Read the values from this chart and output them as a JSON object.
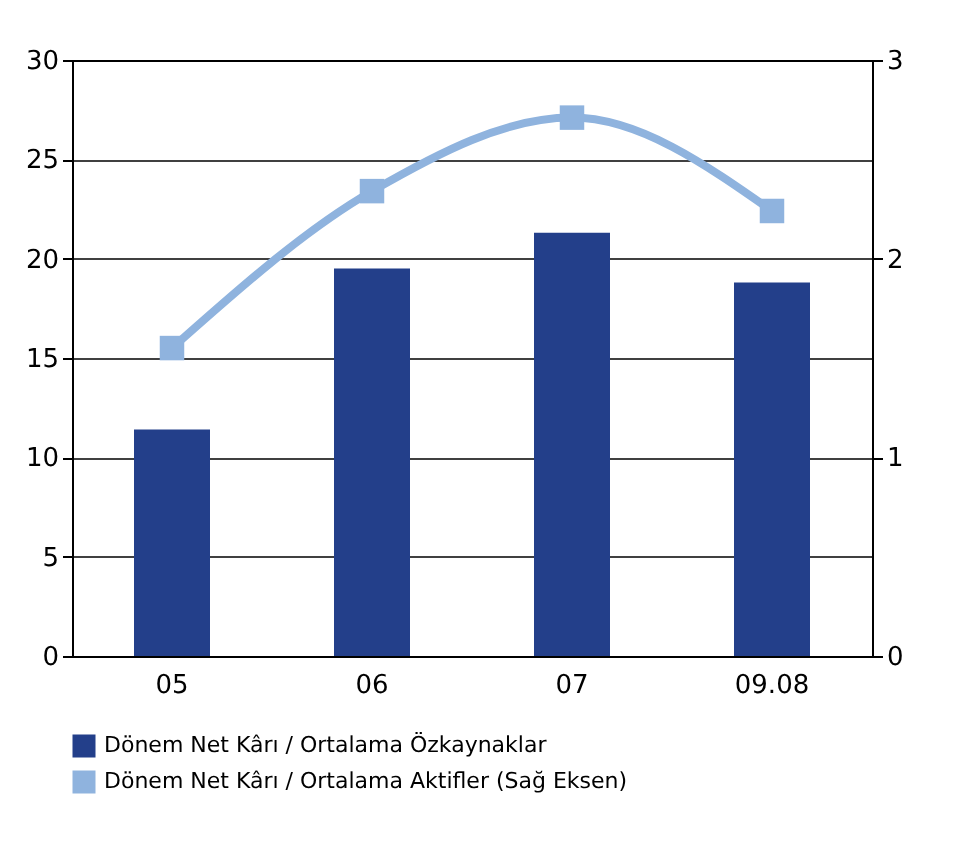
{
  "chart_data": {
    "type": "bar",
    "categories": [
      "05",
      "06",
      "07",
      "09.08"
    ],
    "series": [
      {
        "name": "Dönem Net Kârı / Ortalama Özkaynaklar",
        "color": "#233f8a",
        "values": [
          11.4,
          19.5,
          21.3,
          18.8
        ]
      },
      {
        "name": "Dönem Net Kârı  / Ortalama Aktifler (Sağ Eksen)",
        "type": "line",
        "axis": "y2",
        "color": "#8fb3de",
        "marker": "square",
        "values": [
          1.55,
          2.34,
          2.71,
          2.24
        ]
      }
    ],
    "ylim": [
      0,
      30
    ],
    "yticks": [
      0,
      5,
      10,
      15,
      20,
      25,
      30
    ],
    "y2lim": [
      0,
      3
    ],
    "y2ticks": [
      0,
      1,
      2,
      3
    ],
    "grid": "y",
    "legend": "bottom"
  }
}
